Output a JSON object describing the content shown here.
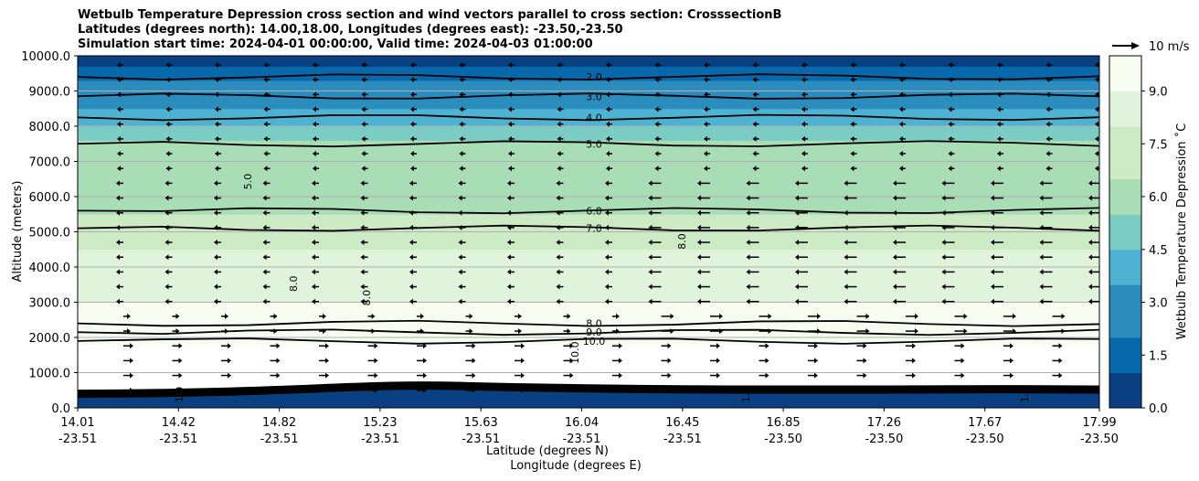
{
  "chart_data": {
    "type": "heatmap",
    "title_lines": [
      "Wetbulb Temperature Depression cross section and wind vectors parallel to cross section: CrosssectionB",
      "Latitudes (degrees north): 14.00,18.00, Longitudes (degrees east): -23.50,-23.50",
      "Simulation start time: 2024-04-01 00:00:00, Valid time: 2024-04-03 01:00:00"
    ],
    "xlabel_lines": [
      "Latitude (degrees N)",
      "Longitude (degrees E)"
    ],
    "ylabel": "Altitude (meters)",
    "x_ticks": [
      {
        "lat": "14.01",
        "lon": "-23.51"
      },
      {
        "lat": "14.42",
        "lon": "-23.51"
      },
      {
        "lat": "14.82",
        "lon": "-23.51"
      },
      {
        "lat": "15.23",
        "lon": "-23.51"
      },
      {
        "lat": "15.63",
        "lon": "-23.51"
      },
      {
        "lat": "16.04",
        "lon": "-23.51"
      },
      {
        "lat": "16.45",
        "lon": "-23.51"
      },
      {
        "lat": "16.85",
        "lon": "-23.50"
      },
      {
        "lat": "17.26",
        "lon": "-23.50"
      },
      {
        "lat": "17.67",
        "lon": "-23.50"
      },
      {
        "lat": "17.99",
        "lon": "-23.50"
      }
    ],
    "y_ticks": [
      "0.0",
      "1000.0",
      "2000.0",
      "3000.0",
      "4000.0",
      "5000.0",
      "6000.0",
      "7000.0",
      "8000.0",
      "9000.0",
      "10000.0"
    ],
    "ylim": [
      0,
      10000
    ],
    "colorbar": {
      "label": "Wetbulb Temperature Depression $^\\circ$C",
      "label_text": "Wetbulb Temperature Depression ˚C",
      "ticks": [
        "0.0",
        "1.5",
        "3.0",
        "4.5",
        "6.0",
        "7.5",
        "9.0"
      ],
      "range": [
        0,
        10
      ]
    },
    "quiver_key": "10 m/s",
    "contours": [
      {
        "level": "2.0",
        "alt_m": 9400
      },
      {
        "level": "3.0",
        "alt_m": 8850
      },
      {
        "level": "4.0",
        "alt_m": 8250
      },
      {
        "level": "5.0",
        "alt_m": 7500
      },
      {
        "level": "6.0",
        "alt_m": 5600
      },
      {
        "level": "7.0",
        "alt_m": 5100
      },
      {
        "level": "8.0",
        "alt_m": 2400
      },
      {
        "level": "9.0",
        "alt_m": 2150
      },
      {
        "level": "10.0",
        "alt_m": 1900
      }
    ],
    "inline_labels": [
      "5.0",
      "8.0",
      "8.0",
      "8.0",
      "1.0",
      "10.0",
      "1.0",
      "1.0"
    ],
    "surface_label": "1.0",
    "grid": true,
    "colors": {
      "ramp": [
        "#084081",
        "#0868ac",
        "#2b8cbe",
        "#4eb3d3",
        "#7bccc4",
        "#a8ddb5",
        "#ccebc5",
        "#e0f3db",
        "#f7fcf0"
      ],
      "contour": "#000000",
      "grid": "#b0b0b0"
    }
  }
}
